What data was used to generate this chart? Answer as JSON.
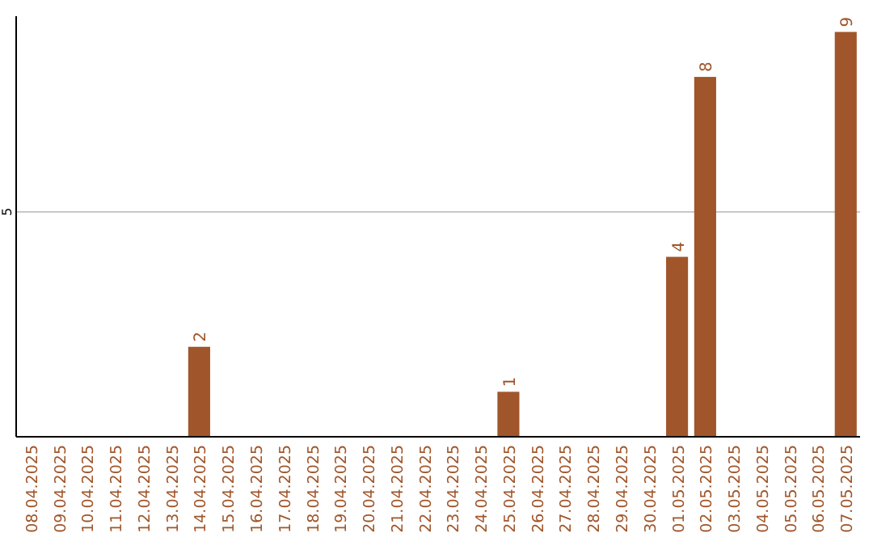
{
  "chart_data": {
    "type": "bar",
    "categories": [
      "08.04.2025",
      "09.04.2025",
      "10.04.2025",
      "11.04.2025",
      "12.04.2025",
      "13.04.2025",
      "14.04.2025",
      "15.04.2025",
      "16.04.2025",
      "17.04.2025",
      "18.04.2025",
      "19.04.2025",
      "20.04.2025",
      "21.04.2025",
      "22.04.2025",
      "23.04.2025",
      "24.04.2025",
      "25.04.2025",
      "26.04.2025",
      "27.04.2025",
      "28.04.2025",
      "29.04.2025",
      "30.04.2025",
      "01.05.2025",
      "02.05.2025",
      "03.05.2025",
      "04.05.2025",
      "05.05.2025",
      "06.05.2025",
      "07.05.2025"
    ],
    "values": [
      0,
      0,
      0,
      0,
      0,
      0,
      2,
      0,
      0,
      0,
      0,
      0,
      0,
      0,
      0,
      0,
      0,
      1,
      0,
      0,
      0,
      0,
      0,
      4,
      8,
      0,
      0,
      0,
      0,
      9
    ],
    "color": "#a0562a",
    "value_labels": [
      null,
      null,
      null,
      null,
      null,
      null,
      "2",
      null,
      null,
      null,
      null,
      null,
      null,
      null,
      null,
      null,
      null,
      "1",
      null,
      null,
      null,
      null,
      null,
      "4",
      "8",
      null,
      null,
      null,
      null,
      "9"
    ],
    "ylim": [
      0,
      9.35
    ],
    "yticks": [
      5
    ],
    "grid": "y"
  }
}
